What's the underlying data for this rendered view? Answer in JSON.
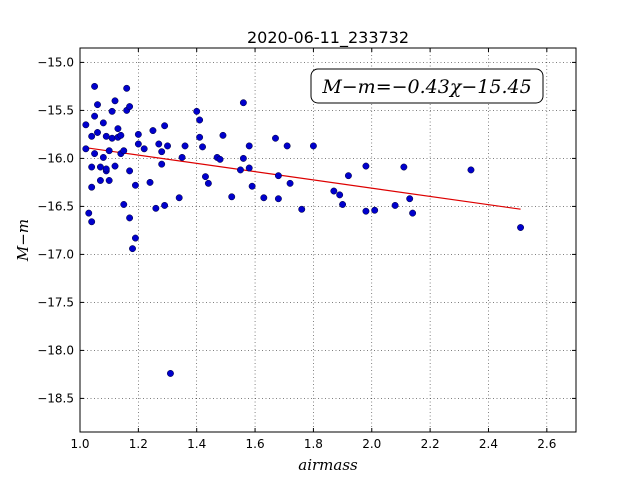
{
  "chart_data": {
    "type": "scatter",
    "title": "2020-06-11_233732",
    "xlabel": "airmass",
    "ylabel": "M−m",
    "annotation": "M−m=−0.43χ−15.45",
    "xlim": [
      1.0,
      2.7
    ],
    "ylim": [
      -18.85,
      -14.85
    ],
    "y_inverted": true,
    "grid": true,
    "xticks": [
      1.0,
      1.2,
      1.4,
      1.6,
      1.8,
      2.0,
      2.2,
      2.4,
      2.6
    ],
    "xtick_labels": [
      "1.0",
      "1.2",
      "1.4",
      "1.6",
      "1.8",
      "2.0",
      "2.2",
      "2.4",
      "2.6"
    ],
    "yticks": [
      -15.0,
      -15.5,
      -16.0,
      -16.5,
      -17.0,
      -17.5,
      -18.0,
      -18.5
    ],
    "ytick_labels": [
      "−15.0",
      "−15.5",
      "−16.0",
      "−16.5",
      "−17.0",
      "−17.5",
      "−18.0",
      "−18.5"
    ],
    "colors": {
      "points": "#0000cc",
      "fit": "#dd0000"
    },
    "fit_line": {
      "slope": -0.43,
      "intercept": -15.45,
      "x_range": [
        1.02,
        2.51
      ]
    },
    "points": [
      [
        1.02,
        -15.65
      ],
      [
        1.02,
        -15.9
      ],
      [
        1.03,
        -16.57
      ],
      [
        1.04,
        -15.77
      ],
      [
        1.04,
        -16.66
      ],
      [
        1.04,
        -16.3
      ],
      [
        1.04,
        -16.09
      ],
      [
        1.05,
        -15.25
      ],
      [
        1.05,
        -15.56
      ],
      [
        1.05,
        -15.95
      ],
      [
        1.06,
        -15.44
      ],
      [
        1.06,
        -15.73
      ],
      [
        1.07,
        -16.09
      ],
      [
        1.07,
        -16.23
      ],
      [
        1.08,
        -15.63
      ],
      [
        1.08,
        -15.99
      ],
      [
        1.09,
        -16.13
      ],
      [
        1.09,
        -16.11
      ],
      [
        1.09,
        -15.77
      ],
      [
        1.1,
        -15.92
      ],
      [
        1.1,
        -16.23
      ],
      [
        1.11,
        -15.79
      ],
      [
        1.11,
        -15.51
      ],
      [
        1.12,
        -15.4
      ],
      [
        1.12,
        -16.08
      ],
      [
        1.13,
        -15.69
      ],
      [
        1.13,
        -15.78
      ],
      [
        1.14,
        -15.95
      ],
      [
        1.14,
        -15.76
      ],
      [
        1.15,
        -16.48
      ],
      [
        1.15,
        -15.92
      ],
      [
        1.16,
        -15.5
      ],
      [
        1.16,
        -15.27
      ],
      [
        1.17,
        -15.46
      ],
      [
        1.17,
        -16.62
      ],
      [
        1.17,
        -16.13
      ],
      [
        1.18,
        -16.94
      ],
      [
        1.19,
        -16.28
      ],
      [
        1.19,
        -16.83
      ],
      [
        1.2,
        -15.85
      ],
      [
        1.2,
        -15.75
      ],
      [
        1.22,
        -15.9
      ],
      [
        1.24,
        -16.25
      ],
      [
        1.25,
        -15.71
      ],
      [
        1.26,
        -16.52
      ],
      [
        1.27,
        -15.85
      ],
      [
        1.28,
        -15.93
      ],
      [
        1.28,
        -16.06
      ],
      [
        1.29,
        -15.66
      ],
      [
        1.29,
        -16.49
      ],
      [
        1.3,
        -15.87
      ],
      [
        1.31,
        -18.24
      ],
      [
        1.34,
        -16.41
      ],
      [
        1.35,
        -15.99
      ],
      [
        1.36,
        -15.87
      ],
      [
        1.4,
        -15.51
      ],
      [
        1.41,
        -15.6
      ],
      [
        1.41,
        -15.78
      ],
      [
        1.42,
        -15.88
      ],
      [
        1.43,
        -16.19
      ],
      [
        1.44,
        -16.26
      ],
      [
        1.47,
        -15.99
      ],
      [
        1.48,
        -16.01
      ],
      [
        1.49,
        -15.76
      ],
      [
        1.52,
        -16.4
      ],
      [
        1.55,
        -16.12
      ],
      [
        1.56,
        -16.0
      ],
      [
        1.56,
        -15.42
      ],
      [
        1.58,
        -15.87
      ],
      [
        1.58,
        -16.1
      ],
      [
        1.59,
        -16.29
      ],
      [
        1.63,
        -16.41
      ],
      [
        1.67,
        -15.79
      ],
      [
        1.68,
        -16.42
      ],
      [
        1.68,
        -16.18
      ],
      [
        1.71,
        -15.87
      ],
      [
        1.72,
        -16.26
      ],
      [
        1.76,
        -16.53
      ],
      [
        1.8,
        -15.87
      ],
      [
        1.87,
        -16.34
      ],
      [
        1.89,
        -16.38
      ],
      [
        1.9,
        -16.48
      ],
      [
        1.92,
        -16.18
      ],
      [
        1.98,
        -16.08
      ],
      [
        1.98,
        -16.55
      ],
      [
        2.01,
        -16.54
      ],
      [
        2.08,
        -16.49
      ],
      [
        2.11,
        -16.09
      ],
      [
        2.13,
        -16.42
      ],
      [
        2.14,
        -16.57
      ],
      [
        2.34,
        -16.12
      ],
      [
        2.51,
        -16.72
      ]
    ]
  }
}
